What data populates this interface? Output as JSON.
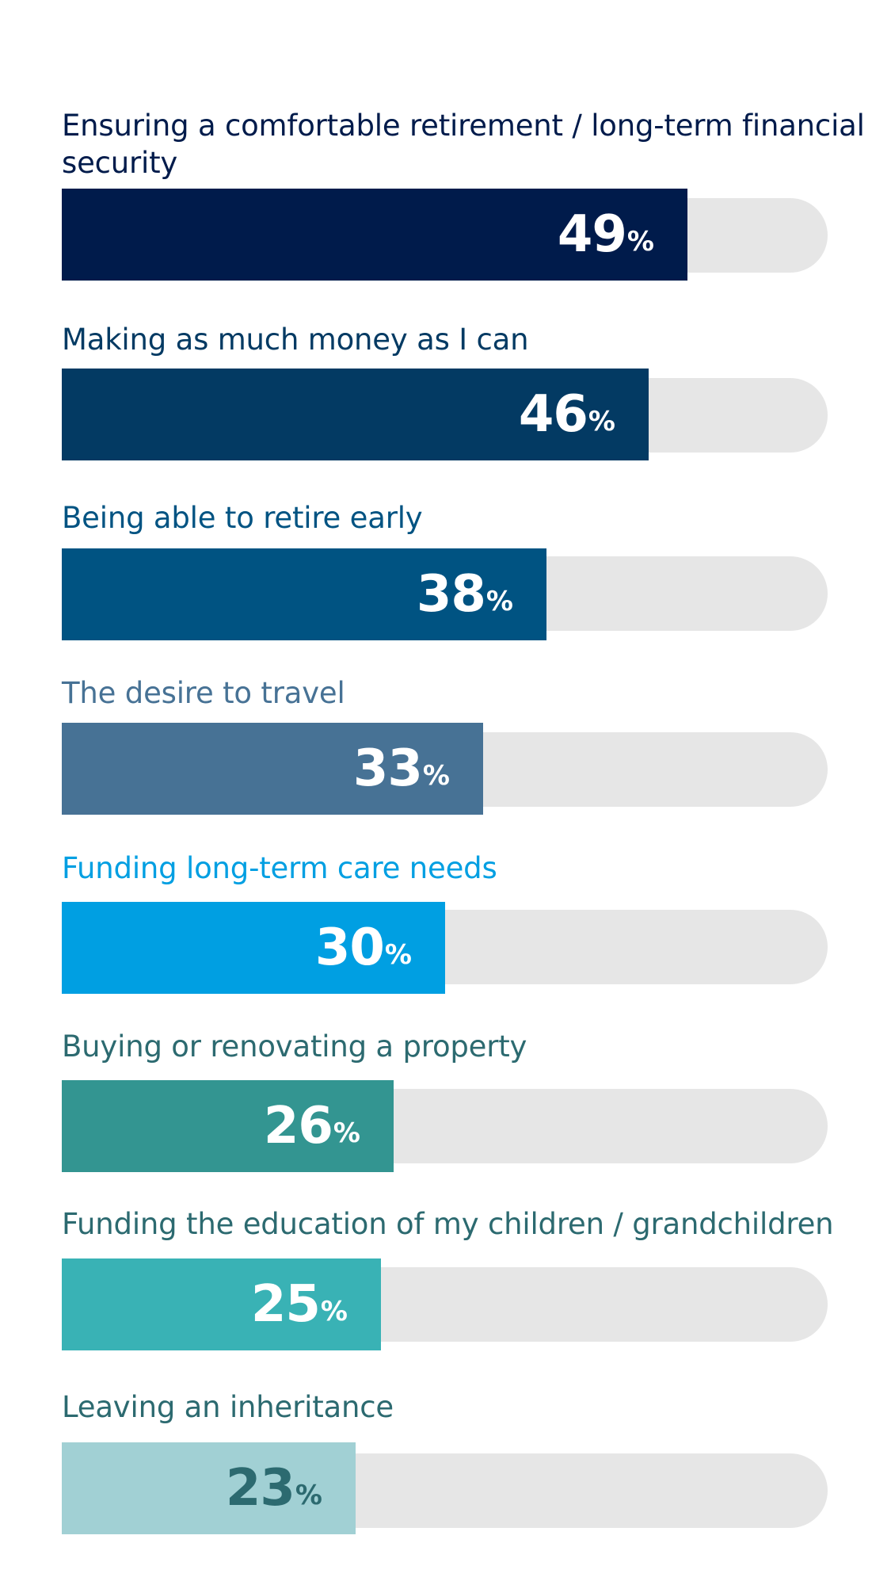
{
  "chart_data": {
    "type": "bar",
    "orientation": "horizontal",
    "unit": "%",
    "xlim": [
      0,
      60
    ],
    "categories": [
      "Ensuring a comfortable retirement / long-term financial security",
      "Making as much money as I can",
      "Being able to retire early",
      "The desire to travel",
      "Funding long-term care needs",
      "Buying or renovating a property",
      "Funding the education of my children / grandchildren",
      "Leaving an inheritance"
    ],
    "values": [
      49,
      46,
      38,
      33,
      30,
      26,
      25,
      23
    ],
    "colors": [
      "#001b4b",
      "#033a63",
      "#005382",
      "#477295",
      "#009fe2",
      "#339591",
      "#39b2b5",
      "#a1d0d4"
    ],
    "label_colors": [
      "#001b4b",
      "#033a63",
      "#005382",
      "#477295",
      "#009fe2",
      "#2c6a70",
      "#2c6a70",
      "#2c6a70"
    ],
    "value_text_colors": [
      "#ffffff",
      "#ffffff",
      "#ffffff",
      "#ffffff",
      "#ffffff",
      "#ffffff",
      "#ffffff",
      "#2c6a70"
    ],
    "track_color": "#e6e6e6",
    "grid": false,
    "legend": "none"
  }
}
